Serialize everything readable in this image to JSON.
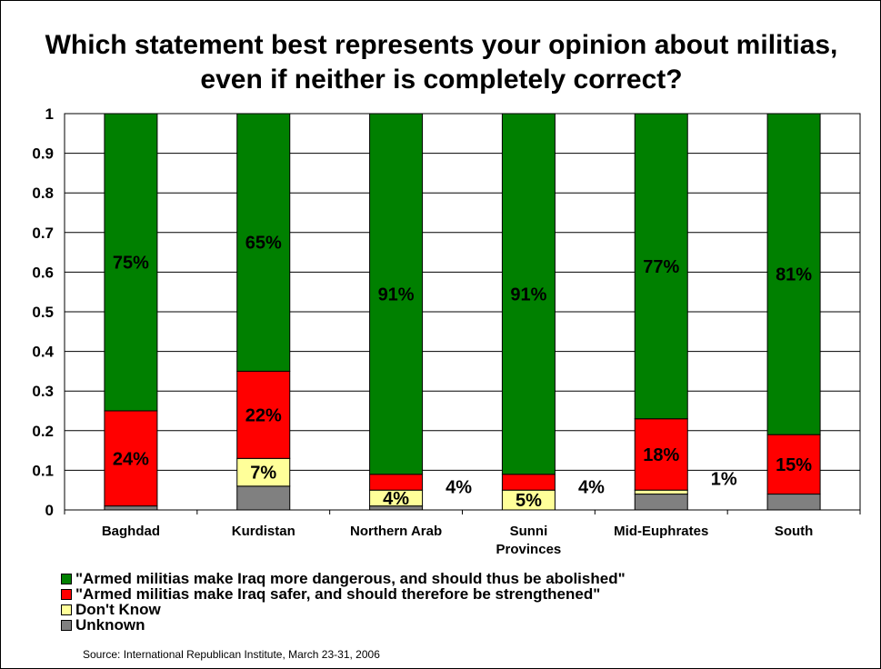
{
  "title": "Which statement best represents your opinion about militias, even if neither is completely correct?",
  "source": "Source: International Republican Institute, March 23-31, 2006",
  "colors": {
    "abolish": "#008000",
    "strengthen": "#ff0000",
    "dont_know": "#ffff99",
    "unknown": "#808080"
  },
  "legend": [
    {
      "label": "\"Armed militias make Iraq more dangerous, and should thus be abolished\"",
      "color": "#008000"
    },
    {
      "label": "\"Armed militias make Iraq safer, and should therefore be strengthened\"",
      "color": "#ff0000"
    },
    {
      "label": "Don't Know",
      "color": "#ffff99"
    },
    {
      "label": "Unknown",
      "color": "#808080"
    }
  ],
  "chart_data": {
    "type": "bar",
    "stacked": true,
    "categories": [
      [
        "Baghdad"
      ],
      [
        "Kurdistan"
      ],
      [
        "Northern Arab"
      ],
      [
        "Sunni",
        "Provinces"
      ],
      [
        "Mid-Euphrates"
      ],
      [
        "South"
      ]
    ],
    "ylim": [
      0,
      1
    ],
    "yticks": [
      "0",
      "0.1",
      "0.2",
      "0.3",
      "0.4",
      "0.5",
      "0.6",
      "0.7",
      "0.8",
      "0.9",
      "1"
    ],
    "grid": true,
    "legend_position": "bottom",
    "series": [
      {
        "name": "Unknown",
        "color": "#808080",
        "values": [
          0.01,
          0.06,
          0.01,
          0.0,
          0.04,
          0.04
        ]
      },
      {
        "name": "Don't Know",
        "color": "#ffff99",
        "values": [
          0.0,
          0.07,
          0.04,
          0.05,
          0.01,
          0.0
        ]
      },
      {
        "name": "\"Armed militias make Iraq safer, and should therefore be strengthened\"",
        "color": "#ff0000",
        "values": [
          0.24,
          0.22,
          0.04,
          0.04,
          0.18,
          0.15
        ]
      },
      {
        "name": "\"Armed militias make Iraq more dangerous, and should thus be abolished\"",
        "color": "#008000",
        "values": [
          0.75,
          0.65,
          0.91,
          0.91,
          0.77,
          0.81
        ]
      }
    ],
    "data_labels": [
      {
        "category": 0,
        "series": 3,
        "text": "75%"
      },
      {
        "category": 0,
        "series": 2,
        "text": "24%"
      },
      {
        "category": 1,
        "series": 3,
        "text": "65%"
      },
      {
        "category": 1,
        "series": 2,
        "text": "22%"
      },
      {
        "category": 1,
        "series": 1,
        "text": "7%"
      },
      {
        "category": 2,
        "series": 3,
        "text": "91%"
      },
      {
        "category": 2,
        "series": 2,
        "text": "4%",
        "outside": true
      },
      {
        "category": 2,
        "series": 1,
        "text": "4%"
      },
      {
        "category": 3,
        "series": 3,
        "text": "91%"
      },
      {
        "category": 3,
        "series": 2,
        "text": "4%",
        "outside": true
      },
      {
        "category": 3,
        "series": 1,
        "text": "5%"
      },
      {
        "category": 4,
        "series": 3,
        "text": "77%"
      },
      {
        "category": 4,
        "series": 2,
        "text": "18%"
      },
      {
        "category": 4,
        "series": 1,
        "text": "1%",
        "outside": true
      },
      {
        "category": 5,
        "series": 3,
        "text": "81%"
      },
      {
        "category": 5,
        "series": 2,
        "text": "15%"
      }
    ]
  }
}
